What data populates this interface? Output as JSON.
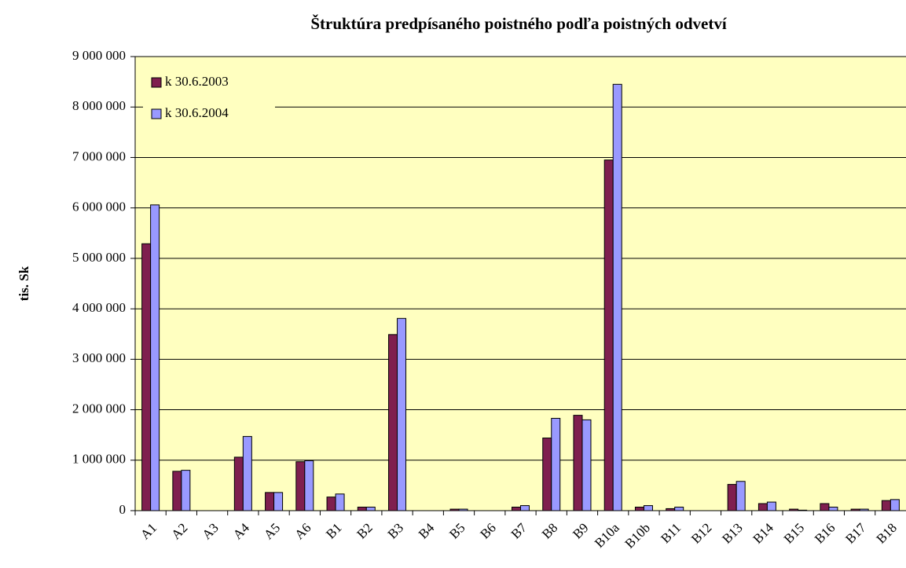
{
  "chart_data": {
    "type": "bar",
    "title": "Štruktúra predpísaného poistného podľa poistných odvetví",
    "y_label": "tis. Sk",
    "categories": [
      "A1",
      "A2",
      "A3",
      "A4",
      "A5",
      "A6",
      "B1",
      "B2",
      "B3",
      "B4",
      "B5",
      "B6",
      "B7",
      "B8",
      "B9",
      "B10a",
      "B10b",
      "B11",
      "B12",
      "B13",
      "B14",
      "B15",
      "B16",
      "B17",
      "B18"
    ],
    "series": [
      {
        "name": "k 30.6.2003",
        "color": "#7f1f4f",
        "values": [
          5290000,
          780000,
          0,
          1060000,
          360000,
          970000,
          270000,
          70000,
          3490000,
          0,
          30000,
          0,
          70000,
          1440000,
          1890000,
          6950000,
          70000,
          40000,
          0,
          520000,
          140000,
          30000,
          140000,
          30000,
          200000
        ]
      },
      {
        "name": "k 30.6.2004",
        "color": "#9999ff",
        "values": [
          6060000,
          800000,
          0,
          1470000,
          360000,
          990000,
          330000,
          70000,
          3810000,
          0,
          30000,
          0,
          100000,
          1830000,
          1800000,
          8450000,
          100000,
          70000,
          0,
          580000,
          170000,
          10000,
          70000,
          30000,
          220000
        ]
      }
    ],
    "ylim": [
      0,
      9000000
    ],
    "yticks": [
      0,
      {
        "value": 1000000,
        "label": "1 000 000"
      },
      {
        "value": 2000000,
        "label": "2 000 000"
      },
      {
        "value": 3000000,
        "label": "3 000 000"
      },
      {
        "value": 4000000,
        "label": "4 000 000"
      },
      {
        "value": 5000000,
        "label": "5 000 000"
      },
      {
        "value": 6000000,
        "label": "6 000 000"
      },
      {
        "value": 7000000,
        "label": "7 000 000"
      },
      {
        "value": 8000000,
        "label": "8 000 000"
      },
      {
        "value": 9000000,
        "label": "9 000 000"
      }
    ],
    "grid": true,
    "legend": "top-left",
    "background": "#ffffc0"
  }
}
